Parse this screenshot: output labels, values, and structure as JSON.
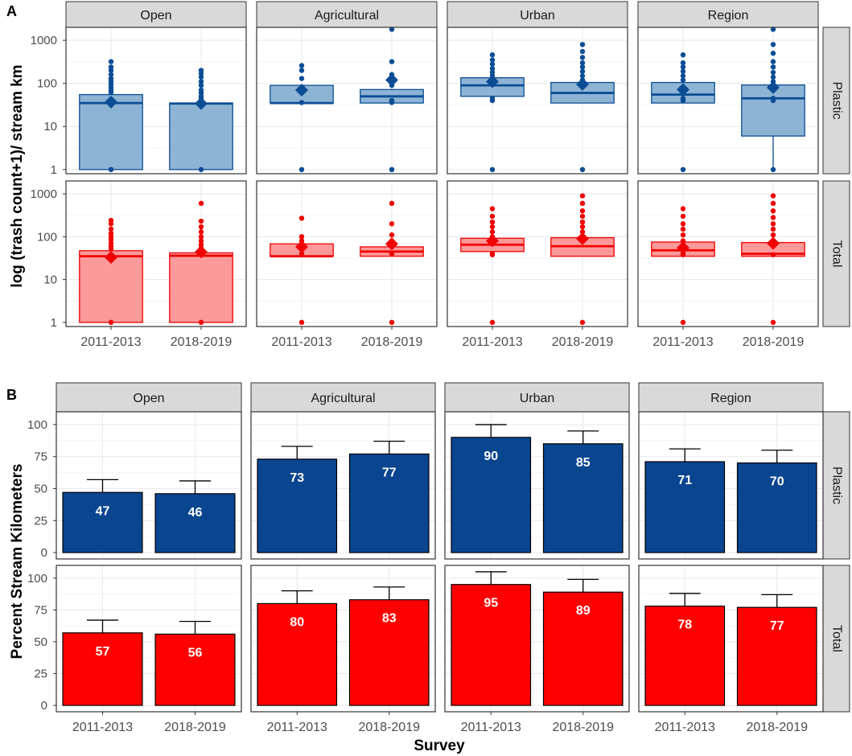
{
  "colors": {
    "plastic_box_fill": "#8eb4d5",
    "plastic_box_line": "#0b4d95",
    "plastic_bar": "#0a4590",
    "total_box_fill": "#fc9a9a",
    "total_box_line": "#f00000",
    "total_bar": "#ff0000",
    "strip_bg": "#d9d9d9",
    "grid": "#ebebeb"
  },
  "chart_data": [
    {
      "panel_label": "A",
      "type": "boxplot",
      "ylabel": "log (trash count+1)/ stream km",
      "yscale": "log10",
      "ylim": [
        0.8,
        2000
      ],
      "yticks": [
        1,
        10,
        100,
        1000
      ],
      "ytick_labels": [
        "1",
        "10",
        "100",
        "1000"
      ],
      "categories": [
        "2011-2013",
        "2018-2019"
      ],
      "facet_columns": [
        "Open",
        "Agricultural",
        "Urban",
        "Region"
      ],
      "facet_rows": [
        "Plastic",
        "Total"
      ],
      "boxes": [
        {
          "row": "Plastic",
          "col": "Open",
          "x": "2011-2013",
          "low": 1,
          "q1": 1,
          "median": 35,
          "q3": 55,
          "high": 55,
          "mean": 37,
          "outliers": [
            1,
            62,
            70,
            80,
            95,
            110,
            130,
            160,
            200,
            240,
            320
          ]
        },
        {
          "row": "Plastic",
          "col": "Open",
          "x": "2018-2019",
          "low": 1,
          "q1": 1,
          "median": 34,
          "q3": 35,
          "high": 35,
          "mean": 34,
          "outliers": [
            1,
            40,
            45,
            50,
            60,
            70,
            90,
            110,
            140,
            170,
            200
          ]
        },
        {
          "row": "Plastic",
          "col": "Agricultural",
          "x": "2011-2013",
          "low": 35,
          "q1": 35,
          "median": 35,
          "q3": 90,
          "high": 90,
          "mean": 70,
          "outliers": [
            1,
            36,
            130,
            200,
            260
          ]
        },
        {
          "row": "Plastic",
          "col": "Agricultural",
          "x": "2018-2019",
          "low": 35,
          "q1": 35,
          "median": 50,
          "q3": 72,
          "high": 75,
          "mean": 120,
          "outliers": [
            1,
            36,
            40,
            90,
            120,
            160,
            320,
            1800
          ]
        },
        {
          "row": "Plastic",
          "col": "Urban",
          "x": "2011-2013",
          "low": 35,
          "q1": 50,
          "median": 90,
          "q3": 135,
          "high": 140,
          "mean": 110,
          "outliers": [
            1,
            40,
            45,
            150,
            180,
            220,
            280,
            350,
            460
          ]
        },
        {
          "row": "Plastic",
          "col": "Urban",
          "x": "2018-2019",
          "low": 35,
          "q1": 35,
          "median": 60,
          "q3": 105,
          "high": 110,
          "mean": 95,
          "outliers": [
            1,
            120,
            150,
            190,
            240,
            300,
            400,
            550,
            800
          ]
        },
        {
          "row": "Plastic",
          "col": "Region",
          "x": "2011-2013",
          "low": 35,
          "q1": 35,
          "median": 55,
          "q3": 105,
          "high": 110,
          "mean": 72,
          "outliers": [
            1,
            40,
            45,
            120,
            150,
            190,
            240,
            300,
            460
          ]
        },
        {
          "row": "Plastic",
          "col": "Region",
          "x": "2018-2019",
          "low": 1,
          "q1": 6,
          "median": 45,
          "q3": 92,
          "high": 95,
          "mean": 80,
          "outliers": [
            1,
            40,
            45,
            110,
            140,
            180,
            240,
            320,
            500,
            800,
            1800
          ]
        },
        {
          "row": "Total",
          "col": "Open",
          "x": "2011-2013",
          "low": 1,
          "q1": 1,
          "median": 35,
          "q3": 47,
          "high": 47,
          "mean": 33,
          "outliers": [
            1,
            52,
            60,
            70,
            85,
            100,
            120,
            150,
            200,
            240
          ]
        },
        {
          "row": "Total",
          "col": "Open",
          "x": "2018-2019",
          "low": 1,
          "q1": 1,
          "median": 36,
          "q3": 42,
          "high": 42,
          "mean": 44,
          "outliers": [
            1,
            48,
            55,
            65,
            80,
            100,
            130,
            170,
            230,
            600
          ]
        },
        {
          "row": "Total",
          "col": "Agricultural",
          "x": "2011-2013",
          "low": 35,
          "q1": 35,
          "median": 35,
          "q3": 68,
          "high": 68,
          "mean": 58,
          "outliers": [
            1,
            40,
            80,
            100,
            270
          ]
        },
        {
          "row": "Total",
          "col": "Agricultural",
          "x": "2018-2019",
          "low": 35,
          "q1": 35,
          "median": 45,
          "q3": 58,
          "high": 58,
          "mean": 68,
          "outliers": [
            1,
            40,
            65,
            80,
            110,
            200,
            600
          ]
        },
        {
          "row": "Total",
          "col": "Urban",
          "x": "2011-2013",
          "low": 35,
          "q1": 45,
          "median": 65,
          "q3": 92,
          "high": 92,
          "mean": 80,
          "outliers": [
            1,
            38,
            40,
            100,
            130,
            170,
            220,
            300,
            450
          ]
        },
        {
          "row": "Total",
          "col": "Urban",
          "x": "2018-2019",
          "low": 35,
          "q1": 35,
          "median": 60,
          "q3": 95,
          "high": 95,
          "mean": 90,
          "outliers": [
            1,
            100,
            130,
            170,
            220,
            300,
            400,
            600,
            900
          ]
        },
        {
          "row": "Total",
          "col": "Region",
          "x": "2011-2013",
          "low": 35,
          "q1": 35,
          "median": 48,
          "q3": 75,
          "high": 75,
          "mean": 55,
          "outliers": [
            1,
            38,
            40,
            80,
            110,
            150,
            200,
            300,
            450
          ]
        },
        {
          "row": "Total",
          "col": "Region",
          "x": "2018-2019",
          "low": 35,
          "q1": 35,
          "median": 40,
          "q3": 73,
          "high": 75,
          "mean": 70,
          "outliers": [
            1,
            38,
            80,
            110,
            150,
            200,
            280,
            400,
            600,
            900
          ]
        }
      ]
    },
    {
      "panel_label": "B",
      "type": "bar",
      "xlabel": "Survey",
      "ylabel": "Percent Stream Kilometers",
      "ylim": [
        -5,
        110
      ],
      "yticks": [
        0,
        25,
        50,
        75,
        100
      ],
      "ytick_labels": [
        "0",
        "25",
        "50",
        "75",
        "100"
      ],
      "categories": [
        "2011-2013",
        "2018-2019"
      ],
      "facet_columns": [
        "Open",
        "Agricultural",
        "Urban",
        "Region"
      ],
      "facet_rows": [
        "Plastic",
        "Total"
      ],
      "bars": [
        {
          "row": "Plastic",
          "col": "Open",
          "x": "2011-2013",
          "value": 47,
          "label": "47",
          "err_upper": 57
        },
        {
          "row": "Plastic",
          "col": "Open",
          "x": "2018-2019",
          "value": 46,
          "label": "46",
          "err_upper": 56
        },
        {
          "row": "Plastic",
          "col": "Agricultural",
          "x": "2011-2013",
          "value": 73,
          "label": "73",
          "err_upper": 83
        },
        {
          "row": "Plastic",
          "col": "Agricultural",
          "x": "2018-2019",
          "value": 77,
          "label": "77",
          "err_upper": 87
        },
        {
          "row": "Plastic",
          "col": "Urban",
          "x": "2011-2013",
          "value": 90,
          "label": "90",
          "err_upper": 100
        },
        {
          "row": "Plastic",
          "col": "Urban",
          "x": "2018-2019",
          "value": 85,
          "label": "85",
          "err_upper": 95
        },
        {
          "row": "Plastic",
          "col": "Region",
          "x": "2011-2013",
          "value": 71,
          "label": "71",
          "err_upper": 81
        },
        {
          "row": "Plastic",
          "col": "Region",
          "x": "2018-2019",
          "value": 70,
          "label": "70",
          "err_upper": 80
        },
        {
          "row": "Total",
          "col": "Open",
          "x": "2011-2013",
          "value": 57,
          "label": "57",
          "err_upper": 67
        },
        {
          "row": "Total",
          "col": "Open",
          "x": "2018-2019",
          "value": 56,
          "label": "56",
          "err_upper": 66
        },
        {
          "row": "Total",
          "col": "Agricultural",
          "x": "2011-2013",
          "value": 80,
          "label": "80",
          "err_upper": 90
        },
        {
          "row": "Total",
          "col": "Agricultural",
          "x": "2018-2019",
          "value": 83,
          "label": "83",
          "err_upper": 93
        },
        {
          "row": "Total",
          "col": "Urban",
          "x": "2011-2013",
          "value": 95,
          "label": "95",
          "err_upper": 105
        },
        {
          "row": "Total",
          "col": "Urban",
          "x": "2018-2019",
          "value": 89,
          "label": "89",
          "err_upper": 99
        },
        {
          "row": "Total",
          "col": "Region",
          "x": "2011-2013",
          "value": 78,
          "label": "78",
          "err_upper": 88
        },
        {
          "row": "Total",
          "col": "Region",
          "x": "2018-2019",
          "value": 77,
          "label": "77",
          "err_upper": 87
        }
      ]
    }
  ]
}
